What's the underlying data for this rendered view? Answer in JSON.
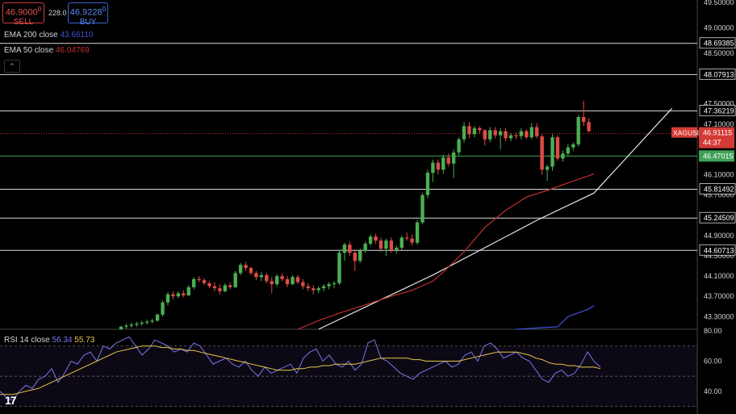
{
  "trade_panel": {
    "sell_price": "46.9000",
    "sell_sup": "0",
    "sell_label": "SELL",
    "spread": "228.0",
    "buy_price": "46.9228",
    "buy_sup": "0",
    "buy_label": "BUY"
  },
  "indicators": {
    "ema200_label": "EMA 200 close",
    "ema200_value": "43.66110",
    "ema200_color": "#3f51d8",
    "ema50_label": "EMA 50 close",
    "ema50_value": "46.04769",
    "ema50_color": "#c0312f",
    "rsi_label": "RSI 14 close",
    "rsi_value": "56.34",
    "rsi_ma_value": "55.73",
    "rsi_color": "#7b75ee",
    "rsi_ma_color": "#e8c54e"
  },
  "price_badge": {
    "symbol": "XAGUSD",
    "price": "46.91115",
    "countdown": "44:37",
    "color": "#d43a35"
  },
  "green_badge": {
    "price": "46.47015",
    "color": "#3fa157"
  },
  "colors": {
    "up": "#4caf50",
    "down": "#e04b47",
    "background": "#000000"
  },
  "chart_data": [
    {
      "type": "candlestick",
      "symbol": "XAGUSD",
      "price_axis": {
        "ylim": [
          43.05,
          49.55
        ],
        "ticks": [
          "49.50000",
          "49.00000",
          "48.50000",
          "47.50000",
          "47.10000",
          "46.10000",
          "45.70000",
          "44.90000",
          "44.50000",
          "44.10000",
          "43.70000",
          "43.30000"
        ]
      },
      "horizontal_levels": [
        "48.69385",
        "48.07913",
        "47.36219",
        "45.81492",
        "45.24509",
        "44.60713"
      ],
      "current_price": 46.91115,
      "green_level": 46.47015,
      "candles_ohlc": [
        [
          43.05,
          43.12,
          43.04,
          43.1
        ],
        [
          43.1,
          43.16,
          43.06,
          43.12
        ],
        [
          43.12,
          43.18,
          43.08,
          43.14
        ],
        [
          43.14,
          43.2,
          43.1,
          43.16
        ],
        [
          43.16,
          43.22,
          43.12,
          43.18
        ],
        [
          43.18,
          43.24,
          43.14,
          43.2
        ],
        [
          43.2,
          43.26,
          43.16,
          43.22
        ],
        [
          43.22,
          43.36,
          43.2,
          43.34
        ],
        [
          43.34,
          43.62,
          43.3,
          43.58
        ],
        [
          43.58,
          43.78,
          43.52,
          43.74
        ],
        [
          43.74,
          43.8,
          43.64,
          43.7
        ],
        [
          43.7,
          43.8,
          43.66,
          43.76
        ],
        [
          43.76,
          43.82,
          43.68,
          43.72
        ],
        [
          43.72,
          43.92,
          43.7,
          43.88
        ],
        [
          43.88,
          44.08,
          43.84,
          44.04
        ],
        [
          44.04,
          44.1,
          43.98,
          44.02
        ],
        [
          44.02,
          44.06,
          43.92,
          43.96
        ],
        [
          43.96,
          44.0,
          43.86,
          43.9
        ],
        [
          43.9,
          43.98,
          43.8,
          43.86
        ],
        [
          43.86,
          43.94,
          43.74,
          43.8
        ],
        [
          43.8,
          43.96,
          43.78,
          43.92
        ],
        [
          43.92,
          43.98,
          43.84,
          43.88
        ],
        [
          43.88,
          44.2,
          43.86,
          44.16
        ],
        [
          44.16,
          44.36,
          44.12,
          44.32
        ],
        [
          44.32,
          44.38,
          44.2,
          44.26
        ],
        [
          44.26,
          44.28,
          44.12,
          44.16
        ],
        [
          44.16,
          44.2,
          44.02,
          44.08
        ],
        [
          44.08,
          44.18,
          44.0,
          44.12
        ],
        [
          44.12,
          44.16,
          43.96,
          44.0
        ],
        [
          44.0,
          44.08,
          43.76,
          43.94
        ],
        [
          43.94,
          44.14,
          43.9,
          44.1
        ],
        [
          44.1,
          44.16,
          44.0,
          44.04
        ],
        [
          44.04,
          44.1,
          43.88,
          43.94
        ],
        [
          43.94,
          44.12,
          43.92,
          44.08
        ],
        [
          44.08,
          44.12,
          43.94,
          43.98
        ],
        [
          43.98,
          44.04,
          43.84,
          43.9
        ],
        [
          43.9,
          43.96,
          43.8,
          43.86
        ],
        [
          43.86,
          43.92,
          43.74,
          43.82
        ],
        [
          43.82,
          43.9,
          43.76,
          43.86
        ],
        [
          43.86,
          43.94,
          43.8,
          43.9
        ],
        [
          43.9,
          43.98,
          43.84,
          43.94
        ],
        [
          43.94,
          44.0,
          43.86,
          43.96
        ],
        [
          43.96,
          44.6,
          43.92,
          44.56
        ],
        [
          44.56,
          44.76,
          44.4,
          44.72
        ],
        [
          44.72,
          44.78,
          44.5,
          44.56
        ],
        [
          44.56,
          44.6,
          44.2,
          44.4
        ],
        [
          44.4,
          44.64,
          44.36,
          44.6
        ],
        [
          44.6,
          44.78,
          44.56,
          44.74
        ],
        [
          44.74,
          44.92,
          44.7,
          44.88
        ],
        [
          44.88,
          44.94,
          44.74,
          44.8
        ],
        [
          44.8,
          44.86,
          44.58,
          44.64
        ],
        [
          44.64,
          44.84,
          44.5,
          44.8
        ],
        [
          44.8,
          44.86,
          44.56,
          44.62
        ],
        [
          44.62,
          44.7,
          44.54,
          44.66
        ],
        [
          44.66,
          44.9,
          44.62,
          44.86
        ],
        [
          44.86,
          44.96,
          44.8,
          44.84
        ],
        [
          44.84,
          44.92,
          44.7,
          44.76
        ],
        [
          44.76,
          45.2,
          44.72,
          45.16
        ],
        [
          45.16,
          45.74,
          45.12,
          45.7
        ],
        [
          45.7,
          46.2,
          45.64,
          46.14
        ],
        [
          46.14,
          46.4,
          45.96,
          46.34
        ],
        [
          46.34,
          46.4,
          46.1,
          46.2
        ],
        [
          46.2,
          46.5,
          46.12,
          46.44
        ],
        [
          46.44,
          46.52,
          46.26,
          46.32
        ],
        [
          46.32,
          46.6,
          46.04,
          46.54
        ],
        [
          46.54,
          46.84,
          46.48,
          46.8
        ],
        [
          46.8,
          47.14,
          46.74,
          47.06
        ],
        [
          47.06,
          47.14,
          46.82,
          46.9
        ],
        [
          46.9,
          47.06,
          46.84,
          47.02
        ],
        [
          47.02,
          47.06,
          46.92,
          46.98
        ],
        [
          46.98,
          47.0,
          46.68,
          46.8
        ],
        [
          46.8,
          47.04,
          46.74,
          46.98
        ],
        [
          46.98,
          47.04,
          46.82,
          46.88
        ],
        [
          46.88,
          47.02,
          46.6,
          46.96
        ],
        [
          46.96,
          47.02,
          46.76,
          46.82
        ],
        [
          46.82,
          46.92,
          46.76,
          46.88
        ],
        [
          46.88,
          46.94,
          46.8,
          46.86
        ],
        [
          46.86,
          47.02,
          46.8,
          46.96
        ],
        [
          46.96,
          47.0,
          46.8,
          46.84
        ],
        [
          46.84,
          47.12,
          46.8,
          47.04
        ],
        [
          47.04,
          47.12,
          46.82,
          46.86
        ],
        [
          46.86,
          46.9,
          46.1,
          46.2
        ],
        [
          46.2,
          46.3,
          45.98,
          46.26
        ],
        [
          46.26,
          46.9,
          46.18,
          46.84
        ],
        [
          46.84,
          46.88,
          46.38,
          46.42
        ],
        [
          46.42,
          46.58,
          46.36,
          46.52
        ],
        [
          46.52,
          46.7,
          46.46,
          46.64
        ],
        [
          46.64,
          46.74,
          46.58,
          46.7
        ],
        [
          46.7,
          47.28,
          46.66,
          47.24
        ],
        [
          47.24,
          47.56,
          47.06,
          47.14
        ],
        [
          47.14,
          47.22,
          46.94,
          46.96
        ]
      ]
    },
    {
      "type": "line",
      "name": "EMA 200 close",
      "points": [
        [
          76,
          43.05
        ],
        [
          84,
          43.1
        ],
        [
          86,
          43.3
        ],
        [
          90,
          43.45
        ],
        [
          91,
          43.52
        ]
      ]
    },
    {
      "type": "line",
      "name": "EMA 50 close",
      "points": [
        [
          34,
          43.05
        ],
        [
          38,
          43.22
        ],
        [
          42,
          43.37
        ],
        [
          46,
          43.5
        ],
        [
          52,
          43.7
        ],
        [
          56,
          43.82
        ],
        [
          60,
          44.0
        ],
        [
          62,
          44.18
        ],
        [
          66,
          44.58
        ],
        [
          70,
          45.06
        ],
        [
          74,
          45.4
        ],
        [
          78,
          45.66
        ],
        [
          82,
          45.79
        ],
        [
          86,
          45.94
        ],
        [
          90,
          46.08
        ],
        [
          91,
          46.12
        ]
      ]
    },
    {
      "type": "line",
      "name": "trendline",
      "points": [
        [
          38,
          43.05
        ],
        [
          60,
          44.12
        ],
        [
          80,
          45.2
        ],
        [
          91,
          45.74
        ],
        [
          106,
          47.41
        ]
      ]
    },
    {
      "type": "line",
      "name": "RSI 14 close",
      "ylim": [
        25,
        80
      ],
      "ticks": [
        "80.00",
        "60.00",
        "40.00"
      ],
      "levels": [
        70,
        50,
        30
      ],
      "values": [
        40,
        36,
        34,
        40,
        44,
        42,
        48,
        50,
        55,
        46,
        52,
        60,
        58,
        64,
        66,
        60,
        70,
        68,
        72,
        74,
        76,
        70,
        64,
        68,
        74,
        72,
        70,
        66,
        68,
        66,
        72,
        70,
        64,
        58,
        60,
        62,
        58,
        56,
        60,
        54,
        50,
        56,
        52,
        54,
        56,
        58,
        52,
        62,
        66,
        68,
        60,
        64,
        58,
        56,
        60,
        54,
        58,
        72,
        74,
        62,
        60,
        56,
        52,
        50,
        48,
        52,
        54,
        56,
        58,
        60,
        56,
        58,
        64,
        66,
        60,
        70,
        72,
        68,
        62,
        64,
        66,
        62,
        60,
        54,
        48,
        46,
        52,
        54,
        50,
        52,
        58,
        66,
        60,
        56
      ]
    },
    {
      "type": "line",
      "name": "RSI MA",
      "values": [
        38,
        38,
        38,
        39,
        40,
        41,
        42,
        44,
        46,
        48,
        50,
        52,
        54,
        56,
        58,
        60,
        62,
        64,
        66,
        67,
        68,
        69,
        70,
        70,
        70,
        69,
        69,
        68,
        68,
        67,
        67,
        66,
        65,
        64,
        63,
        62,
        61,
        60,
        59,
        58,
        57,
        56,
        55,
        54,
        54,
        54,
        55,
        55,
        56,
        56,
        57,
        57,
        58,
        58,
        58,
        58,
        59,
        60,
        61,
        62,
        62,
        62,
        62,
        62,
        61,
        61,
        60,
        60,
        60,
        60,
        60,
        60,
        61,
        62,
        63,
        64,
        65,
        66,
        66,
        66,
        66,
        65,
        64,
        62,
        61,
        59,
        58,
        58,
        57,
        57,
        56,
        56,
        56,
        55
      ]
    }
  ]
}
